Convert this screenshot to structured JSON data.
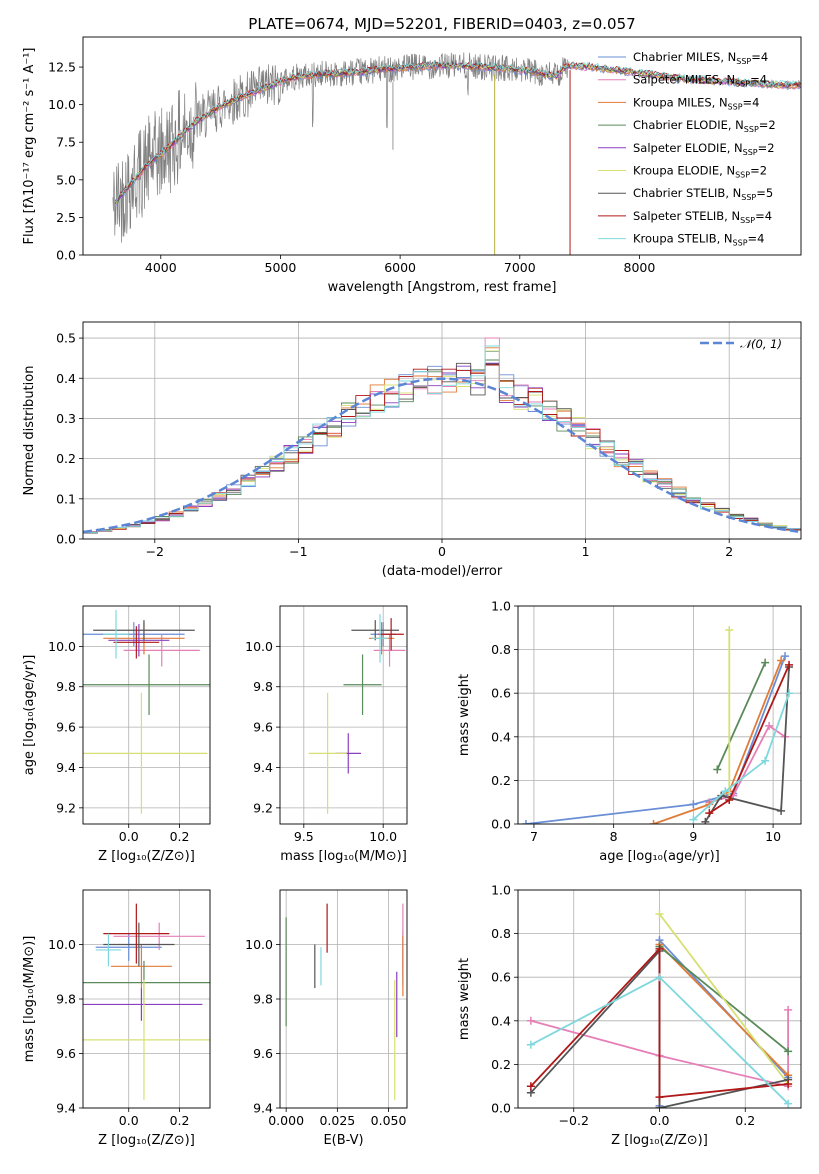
{
  "palette": {
    "Chabrier MILES": "#6a8fd6",
    "Salpeter MILES": "#e67fb8",
    "Kroupa MILES": "#e07b39",
    "Chabrier ELODIE": "#5a8a5a",
    "Salpeter ELODIE": "#8a3fbf",
    "Kroupa ELODIE": "#d6e070",
    "Chabrier STELIB": "#555555",
    "Salpeter STELIB": "#b01818",
    "Kroupa STELIB": "#7fd8dd",
    "data": "#808080",
    "normal": "#5b86d6"
  },
  "chart_data": [
    {
      "id": "spectrum",
      "type": "line",
      "title": "PLATE=0674, MJD=52201, FIBERID=0403, z=0.057",
      "xlabel": "wavelength [Angstrom, rest frame]",
      "ylabel": "Flux [fλ10⁻¹⁷ erg cm⁻² s⁻¹ A⁻¹]",
      "xlim": [
        3350,
        9350
      ],
      "ylim": [
        0,
        14.5
      ],
      "xticks": [
        4000,
        5000,
        6000,
        7000,
        8000
      ],
      "yticks": [
        0.0,
        2.5,
        5.0,
        7.5,
        10.0,
        12.5
      ],
      "grid": false,
      "legend_position": "top-right",
      "legend": [
        {
          "label": "Chabrier MILES, N",
          "sub": "SSP",
          "suffix": "=4",
          "color": "#6a8fd6"
        },
        {
          "label": "Salpeter MILES, N",
          "sub": "SSP",
          "suffix": "=4",
          "color": "#e67fb8"
        },
        {
          "label": "Kroupa MILES, N",
          "sub": "SSP",
          "suffix": "=4",
          "color": "#e07b39"
        },
        {
          "label": "Chabrier ELODIE, N",
          "sub": "SSP",
          "suffix": "=2",
          "color": "#5a8a5a"
        },
        {
          "label": "Salpeter ELODIE, N",
          "sub": "SSP",
          "suffix": "=2",
          "color": "#8a3fbf"
        },
        {
          "label": "Kroupa ELODIE, N",
          "sub": "SSP",
          "suffix": "=2",
          "color": "#d6e070"
        },
        {
          "label": "Chabrier STELIB, N",
          "sub": "SSP",
          "suffix": "=5",
          "color": "#555555"
        },
        {
          "label": "Salpeter STELIB, N",
          "sub": "SSP",
          "suffix": "=4",
          "color": "#b01818"
        },
        {
          "label": "Kroupa STELIB, N",
          "sub": "SSP",
          "suffix": "=4",
          "color": "#7fd8dd"
        }
      ],
      "continuum_x": [
        3600,
        3700,
        3800,
        3900,
        4000,
        4100,
        4200,
        4300,
        4400,
        4500,
        4700,
        4900,
        5100,
        5300,
        5500,
        5700,
        5900,
        6100,
        6300,
        6500,
        6700,
        6900,
        7100,
        7300,
        7400,
        7600,
        7800,
        8000,
        8200,
        8400,
        8600,
        8800,
        9000,
        9200
      ],
      "continuum_y": [
        3.2,
        4.3,
        5.2,
        6.1,
        6.7,
        7.4,
        8.2,
        8.9,
        9.4,
        9.9,
        10.6,
        11.2,
        11.8,
        12.0,
        12.1,
        12.2,
        12.4,
        12.5,
        12.6,
        12.6,
        12.5,
        12.4,
        12.2,
        11.9,
        12.6,
        12.5,
        12.3,
        12.1,
        11.9,
        11.7,
        11.6,
        11.5,
        11.4,
        11.3
      ],
      "data_xrange": [
        3600,
        7400
      ]
    },
    {
      "id": "residuals",
      "type": "histogram",
      "xlabel": "(data-model)/error",
      "ylabel": "Normed distribution",
      "xlim": [
        -2.5,
        2.5
      ],
      "ylim": [
        0,
        0.54
      ],
      "xticks": [
        -2,
        -1,
        0,
        1,
        2
      ],
      "yticks": [
        0.0,
        0.1,
        0.2,
        0.3,
        0.4,
        0.5
      ],
      "grid": true,
      "legend_position": "top-right",
      "normal_label": "𝒩(0, 1)",
      "bin_width": 0.1
    },
    {
      "id": "age-vs-Z",
      "type": "scatter",
      "xlabel": "Z [log₁₀(Z/Z⊙)]",
      "ylabel": "age  [log₁₀(age/yr)]",
      "xlim": [
        -0.18,
        0.32
      ],
      "ylim": [
        9.12,
        10.2
      ],
      "xticks": [
        0.0,
        0.2
      ],
      "yticks": [
        9.2,
        9.4,
        9.6,
        9.8,
        10.0
      ],
      "grid": true,
      "points": [
        {
          "x": 0.02,
          "y": 10.06,
          "xerr": 0.2,
          "yerr": 0.06,
          "color": "#6a8fd6"
        },
        {
          "x": 0.13,
          "y": 9.98,
          "xerr": 0.15,
          "yerr": 0.08,
          "color": "#e67fb8"
        },
        {
          "x": 0.06,
          "y": 10.04,
          "xerr": 0.16,
          "yerr": 0.08,
          "color": "#e07b39"
        },
        {
          "x": 0.08,
          "y": 9.81,
          "xerr": 0.3,
          "yerr": 0.15,
          "color": "#5a8a5a"
        },
        {
          "x": 0.04,
          "y": 10.03,
          "xerr": 0.12,
          "yerr": 0.08,
          "color": "#8a3fbf"
        },
        {
          "x": 0.05,
          "y": 9.47,
          "xerr": 0.26,
          "yerr": 0.3,
          "color": "#d6e070"
        },
        {
          "x": 0.06,
          "y": 10.08,
          "xerr": 0.2,
          "yerr": 0.05,
          "color": "#555555"
        },
        {
          "x": 0.03,
          "y": 10.02,
          "xerr": 0.09,
          "yerr": 0.08,
          "color": "#b01818"
        },
        {
          "x": -0.05,
          "y": 10.06,
          "xerr": 0.05,
          "yerr": 0.12,
          "color": "#7fd8dd"
        }
      ]
    },
    {
      "id": "age-vs-mass",
      "type": "scatter",
      "xlabel": "mass [log₁₀(M/M⊙)]",
      "ylabel": "",
      "xlim": [
        9.35,
        10.15
      ],
      "ylim": [
        9.12,
        10.2
      ],
      "xticks": [
        9.5,
        10.0
      ],
      "yticks": [
        9.2,
        9.4,
        9.6,
        9.8,
        10.0
      ],
      "grid": true,
      "points": [
        {
          "x": 10.0,
          "y": 10.06,
          "xerr": 0.08,
          "yerr": 0.06,
          "color": "#6a8fd6"
        },
        {
          "x": 10.04,
          "y": 9.98,
          "xerr": 0.1,
          "yerr": 0.08,
          "color": "#e67fb8"
        },
        {
          "x": 9.99,
          "y": 10.04,
          "xerr": 0.08,
          "yerr": 0.08,
          "color": "#e07b39"
        },
        {
          "x": 9.87,
          "y": 9.81,
          "xerr": 0.12,
          "yerr": 0.15,
          "color": "#5a8a5a"
        },
        {
          "x": 9.78,
          "y": 9.47,
          "xerr": 0.08,
          "yerr": 0.1,
          "color": "#8a3fbf"
        },
        {
          "x": 9.65,
          "y": 9.47,
          "xerr": 0.12,
          "yerr": 0.3,
          "color": "#d6e070"
        },
        {
          "x": 9.95,
          "y": 10.08,
          "xerr": 0.15,
          "yerr": 0.05,
          "color": "#555555"
        },
        {
          "x": 10.05,
          "y": 10.06,
          "xerr": 0.08,
          "yerr": 0.08,
          "color": "#b01818"
        },
        {
          "x": 9.98,
          "y": 10.04,
          "xerr": 0.05,
          "yerr": 0.12,
          "color": "#7fd8dd"
        }
      ]
    },
    {
      "id": "weight-vs-age",
      "type": "line",
      "xlabel": "age  [log₁₀(age/yr)]",
      "ylabel": "mass weight",
      "xlim": [
        6.8,
        10.35
      ],
      "ylim": [
        0,
        1.0
      ],
      "xticks": [
        7,
        8,
        9,
        10
      ],
      "yticks": [
        0.0,
        0.2,
        0.4,
        0.6,
        0.8,
        1.0
      ],
      "grid": true,
      "series": [
        {
          "color": "#6a8fd6",
          "x": [
            6.9,
            9.0,
            9.5,
            10.15
          ],
          "y": [
            0.0,
            0.09,
            0.14,
            0.77
          ]
        },
        {
          "color": "#e67fb8",
          "x": [
            9.2,
            9.5,
            9.95,
            10.15
          ],
          "y": [
            0.1,
            0.13,
            0.45,
            0.4
          ]
        },
        {
          "color": "#e07b39",
          "x": [
            8.5,
            9.2,
            9.45,
            10.1
          ],
          "y": [
            0.0,
            0.09,
            0.15,
            0.75
          ]
        },
        {
          "color": "#5a8a5a",
          "x": [
            9.3,
            9.9
          ],
          "y": [
            0.25,
            0.74
          ]
        },
        {
          "color": "#d6e070",
          "x": [
            9.45,
            9.45
          ],
          "y": [
            0.11,
            0.89
          ]
        },
        {
          "color": "#555555",
          "x": [
            9.15,
            9.35,
            10.1,
            10.2
          ],
          "y": [
            0.01,
            0.13,
            0.06,
            0.72
          ]
        },
        {
          "color": "#b01818",
          "x": [
            9.2,
            9.45,
            10.2
          ],
          "y": [
            0.05,
            0.11,
            0.73
          ]
        },
        {
          "color": "#7fd8dd",
          "x": [
            9.0,
            9.4,
            9.9,
            10.2
          ],
          "y": [
            0.02,
            0.15,
            0.29,
            0.6
          ]
        }
      ]
    },
    {
      "id": "mass-vs-Z",
      "type": "scatter",
      "xlabel": "Z [log₁₀(Z/Z⊙)]",
      "ylabel": "mass [log₁₀(M/M⊙)]",
      "xlim": [
        -0.18,
        0.32
      ],
      "ylim": [
        9.4,
        10.2
      ],
      "xticks": [
        0.0,
        0.2
      ],
      "yticks": [
        9.4,
        9.6,
        9.8,
        10.0
      ],
      "grid": true,
      "points": [
        {
          "x": 0.0,
          "y": 9.99,
          "xerr": 0.13,
          "yerr": 0.05,
          "color": "#6a8fd6"
        },
        {
          "x": 0.12,
          "y": 10.03,
          "xerr": 0.18,
          "yerr": 0.05,
          "color": "#e67fb8"
        },
        {
          "x": 0.05,
          "y": 9.92,
          "xerr": 0.12,
          "yerr": 0.08,
          "color": "#e07b39"
        },
        {
          "x": 0.06,
          "y": 9.86,
          "xerr": 0.31,
          "yerr": 0.08,
          "color": "#5a8a5a"
        },
        {
          "x": 0.05,
          "y": 9.78,
          "xerr": 0.24,
          "yerr": 0.06,
          "color": "#8a3fbf"
        },
        {
          "x": 0.06,
          "y": 9.65,
          "xerr": 0.26,
          "yerr": 0.22,
          "color": "#d6e070"
        },
        {
          "x": 0.04,
          "y": 10.0,
          "xerr": 0.14,
          "yerr": 0.08,
          "color": "#555555"
        },
        {
          "x": 0.03,
          "y": 10.04,
          "xerr": 0.13,
          "yerr": 0.11,
          "color": "#b01818"
        },
        {
          "x": -0.08,
          "y": 9.98,
          "xerr": 0.05,
          "yerr": 0.06,
          "color": "#7fd8dd"
        }
      ]
    },
    {
      "id": "mass-vs-EBV",
      "type": "scatter",
      "xlabel": "E(B-V)",
      "ylabel": "",
      "xlim": [
        -0.003,
        0.059
      ],
      "ylim": [
        9.4,
        10.2
      ],
      "xticks": [
        0.0,
        0.025,
        0.05
      ],
      "yticks": [
        9.4,
        9.6,
        9.8,
        10.0
      ],
      "grid": true,
      "points": [
        {
          "x": 0.057,
          "y": 9.95,
          "xerr": 0,
          "yerr": 0.1,
          "color": "#6a8fd6"
        },
        {
          "x": 0.057,
          "y": 10.02,
          "xerr": 0,
          "yerr": 0.13,
          "color": "#e67fb8"
        },
        {
          "x": 0.057,
          "y": 9.92,
          "xerr": 0,
          "yerr": 0.11,
          "color": "#e07b39"
        },
        {
          "x": 0.0,
          "y": 9.9,
          "xerr": 0,
          "yerr": 0.2,
          "color": "#5a8a5a"
        },
        {
          "x": 0.054,
          "y": 9.78,
          "xerr": 0,
          "yerr": 0.12,
          "color": "#8a3fbf"
        },
        {
          "x": 0.053,
          "y": 9.65,
          "xerr": 0,
          "yerr": 0.22,
          "color": "#d6e070"
        },
        {
          "x": 0.014,
          "y": 9.92,
          "xerr": 0,
          "yerr": 0.08,
          "color": "#555555"
        },
        {
          "x": 0.02,
          "y": 10.06,
          "xerr": 0,
          "yerr": 0.09,
          "color": "#b01818"
        },
        {
          "x": 0.017,
          "y": 9.92,
          "xerr": 0,
          "yerr": 0.07,
          "color": "#7fd8dd"
        }
      ]
    },
    {
      "id": "weight-vs-Z",
      "type": "line",
      "xlabel": "Z [log₁₀(Z/Z⊙)]",
      "ylabel": "mass weight",
      "xlim": [
        -0.33,
        0.33
      ],
      "ylim": [
        0,
        1.0
      ],
      "xticks": [
        -0.2,
        0.0,
        0.2
      ],
      "yticks": [
        0.0,
        0.2,
        0.4,
        0.6,
        0.8,
        1.0
      ],
      "grid": true,
      "series": [
        {
          "color": "#6a8fd6",
          "x": [
            0.0,
            0.0,
            0.3
          ],
          "y": [
            0.01,
            0.77,
            0.14
          ]
        },
        {
          "color": "#e67fb8",
          "x": [
            -0.3,
            0.0,
            0.3,
            0.3
          ],
          "y": [
            0.4,
            0.24,
            0.1,
            0.45
          ]
        },
        {
          "color": "#e07b39",
          "x": [
            0.0,
            0.0,
            0.3
          ],
          "y": [
            0.0,
            0.75,
            0.15
          ]
        },
        {
          "color": "#5a8a5a",
          "x": [
            0.0,
            0.3
          ],
          "y": [
            0.74,
            0.26
          ]
        },
        {
          "color": "#d6e070",
          "x": [
            0.0,
            0.3
          ],
          "y": [
            0.89,
            0.11
          ]
        },
        {
          "color": "#555555",
          "x": [
            -0.3,
            0.0,
            0.0,
            0.3
          ],
          "y": [
            0.07,
            0.72,
            0.0,
            0.13
          ]
        },
        {
          "color": "#b01818",
          "x": [
            -0.3,
            0.0,
            0.0,
            0.3
          ],
          "y": [
            0.1,
            0.73,
            0.05,
            0.11
          ]
        },
        {
          "color": "#7fd8dd",
          "x": [
            -0.3,
            0.0,
            0.3
          ],
          "y": [
            0.29,
            0.6,
            0.02
          ]
        }
      ]
    }
  ]
}
